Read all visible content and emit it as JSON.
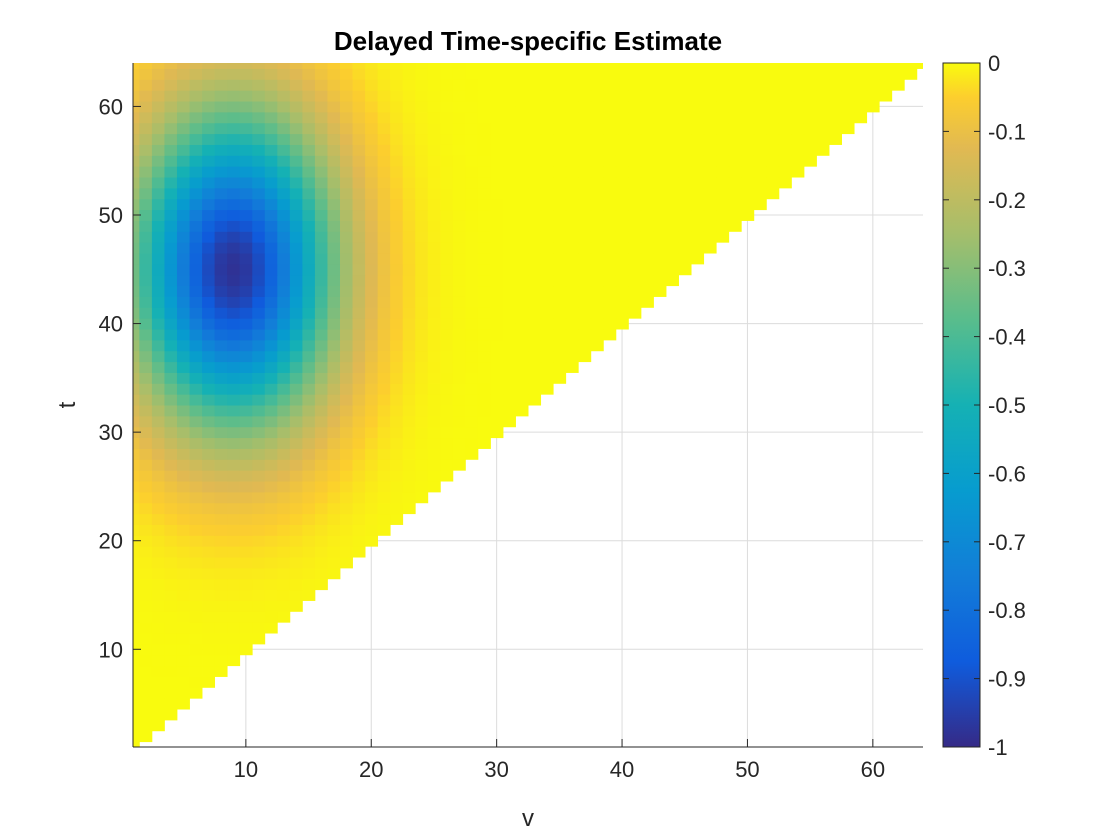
{
  "chart_data": {
    "type": "heatmap",
    "title": "Delayed Time-specific Estimate",
    "xlabel": "v",
    "ylabel": "t",
    "xlim": [
      1,
      64
    ],
    "ylim": [
      1,
      64
    ],
    "xticks": [
      10,
      20,
      30,
      40,
      50,
      60
    ],
    "yticks": [
      10,
      20,
      30,
      40,
      50,
      60
    ],
    "grid": true,
    "domain": "lower triangle: values defined for v <= t, blank for v > t",
    "colorbar": {
      "location": "right",
      "colormap": "parula",
      "clim": [
        -1,
        0
      ],
      "ticks": [
        0,
        -0.1,
        -0.2,
        -0.3,
        -0.4,
        -0.5,
        -0.6,
        -0.7,
        -0.8,
        -0.9,
        -1
      ],
      "tick_labels": [
        "0",
        "-0.1",
        "-0.2",
        "-0.3",
        "-0.4",
        "-0.5",
        "-0.6",
        "-0.7",
        "-0.8",
        "-0.9",
        "-1"
      ]
    },
    "features": [
      {
        "kind": "minimum",
        "v": 9,
        "t": 45,
        "value": -0.98,
        "spread_v": 5.5,
        "spread_t": 10
      },
      {
        "kind": "background",
        "value": 0.0
      }
    ]
  }
}
